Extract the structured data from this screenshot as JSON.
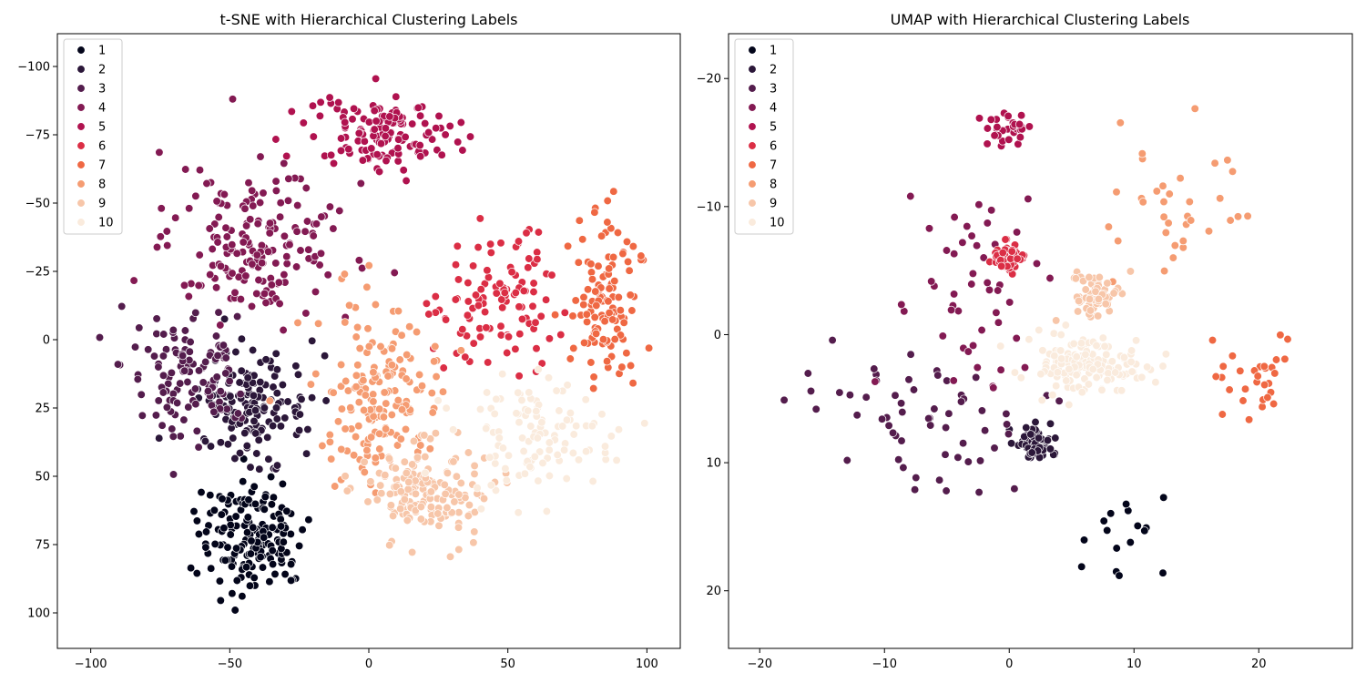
{
  "palette": [
    "#03051a",
    "#2b1739",
    "#541d4d",
    "#831a53",
    "#b0124f",
    "#db2e45",
    "#ef6843",
    "#f59c72",
    "#f7c6a9",
    "#faebdd"
  ],
  "chart_data": [
    {
      "type": "scatter",
      "title": "t-SNE with Hierarchical Clustering Labels",
      "xlabel": "",
      "ylabel": "",
      "xlim": [
        -112,
        112
      ],
      "ylim": [
        -112,
        113
      ],
      "y_inverted": true,
      "xticks": [
        -100,
        -50,
        0,
        50,
        100
      ],
      "yticks": [
        -100,
        -75,
        -50,
        -25,
        0,
        25,
        50,
        75,
        100
      ],
      "grid": false,
      "legend": "top-left",
      "legend_entries": [
        "1",
        "2",
        "3",
        "4",
        "5",
        "6",
        "7",
        "8",
        "9",
        "10"
      ],
      "clusters": [
        {
          "label": "1",
          "center": [
            -42,
            72
          ],
          "spread": [
            16,
            18
          ],
          "n": 170
        },
        {
          "label": "2",
          "center": [
            -42,
            25
          ],
          "spread": [
            16,
            16
          ],
          "n": 150
        },
        {
          "label": "3",
          "center": [
            -65,
            10
          ],
          "spread": [
            20,
            20
          ],
          "n": 120
        },
        {
          "label": "4",
          "center": [
            -40,
            -35
          ],
          "spread": [
            26,
            22
          ],
          "n": 180
        },
        {
          "label": "5",
          "center": [
            5,
            -75
          ],
          "spread": [
            22,
            12
          ],
          "n": 140
        },
        {
          "label": "6",
          "center": [
            45,
            -15
          ],
          "spread": [
            18,
            22
          ],
          "n": 110
        },
        {
          "label": "7",
          "center": [
            85,
            -15
          ],
          "spread": [
            10,
            25
          ],
          "n": 120
        },
        {
          "label": "8",
          "center": [
            5,
            20
          ],
          "spread": [
            18,
            25
          ],
          "n": 170
        },
        {
          "label": "9",
          "center": [
            20,
            55
          ],
          "spread": [
            18,
            14
          ],
          "n": 160
        },
        {
          "label": "10",
          "center": [
            60,
            35
          ],
          "spread": [
            22,
            18
          ],
          "n": 110
        }
      ]
    },
    {
      "type": "scatter",
      "title": "UMAP with Hierarchical Clustering Labels",
      "xlabel": "",
      "ylabel": "",
      "xlim": [
        -22.5,
        27.5
      ],
      "ylim": [
        -23.5,
        24.5
      ],
      "y_inverted": true,
      "xticks": [
        -20,
        -10,
        0,
        10,
        20
      ],
      "yticks": [
        -20,
        -10,
        0,
        10,
        20
      ],
      "grid": false,
      "legend": "top-left",
      "legend_entries": [
        "1",
        "2",
        "3",
        "4",
        "5",
        "6",
        "7",
        "8",
        "9",
        "10"
      ],
      "clusters": [
        {
          "label": "1",
          "center": [
            9,
            16
          ],
          "spread": [
            3,
            3
          ],
          "n": 16
        },
        {
          "label": "2",
          "center": [
            2,
            8.5
          ],
          "spread": [
            1.3,
            1.2
          ],
          "n": 55
        },
        {
          "label": "3",
          "center": [
            -8,
            6
          ],
          "spread": [
            7,
            5
          ],
          "n": 60
        },
        {
          "label": "4",
          "center": [
            -3,
            -4
          ],
          "spread": [
            5,
            8
          ],
          "n": 50
        },
        {
          "label": "5",
          "center": [
            0,
            -16
          ],
          "spread": [
            1.2,
            1
          ],
          "n": 35
        },
        {
          "label": "6",
          "center": [
            0,
            -6
          ],
          "spread": [
            1,
            1
          ],
          "n": 55
        },
        {
          "label": "7",
          "center": [
            19,
            4
          ],
          "spread": [
            4,
            3.5
          ],
          "n": 30
        },
        {
          "label": "8",
          "center": [
            14,
            -10
          ],
          "spread": [
            5,
            5
          ],
          "n": 35
        },
        {
          "label": "9",
          "center": [
            7,
            -3
          ],
          "spread": [
            1.6,
            1.5
          ],
          "n": 70
        },
        {
          "label": "10",
          "center": [
            6,
            2.5
          ],
          "spread": [
            4,
            2
          ],
          "n": 140
        }
      ]
    }
  ]
}
